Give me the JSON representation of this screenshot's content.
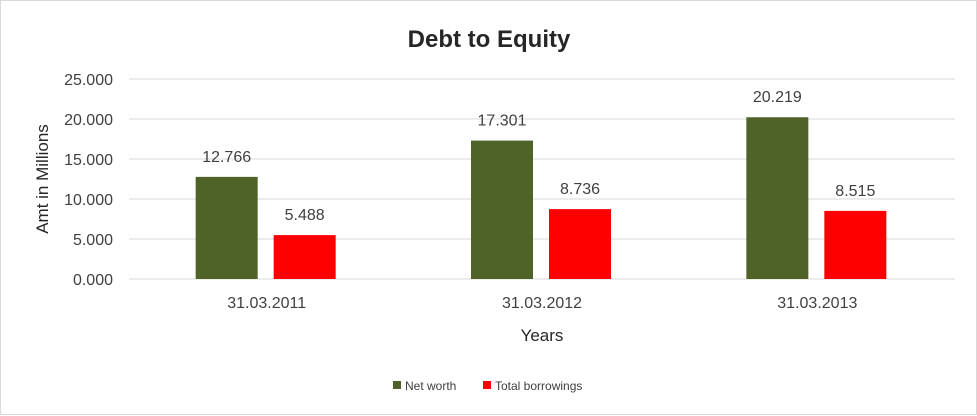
{
  "chart_data": {
    "type": "bar",
    "title": "Debt to Equity",
    "xlabel": "Years",
    "ylabel": "Amt in Millions",
    "categories": [
      "31.03.2011",
      "31.03.2012",
      "31.03.2013"
    ],
    "series": [
      {
        "name": "Net worth",
        "values": [
          12.766,
          17.301,
          20.219
        ],
        "labels": [
          "12.766",
          "17.301",
          "20.219"
        ],
        "color": "#4f6228"
      },
      {
        "name": "Total borrowings",
        "values": [
          5.488,
          8.736,
          8.515
        ],
        "labels": [
          "5.488",
          "8.736",
          "8.515"
        ],
        "color": "#ff0000"
      }
    ],
    "ylim": [
      0,
      25
    ],
    "yticks": [
      "0.000",
      "5.000",
      "10.000",
      "15.000",
      "20.000",
      "25.000"
    ],
    "grid": true,
    "legend": "bottom"
  }
}
